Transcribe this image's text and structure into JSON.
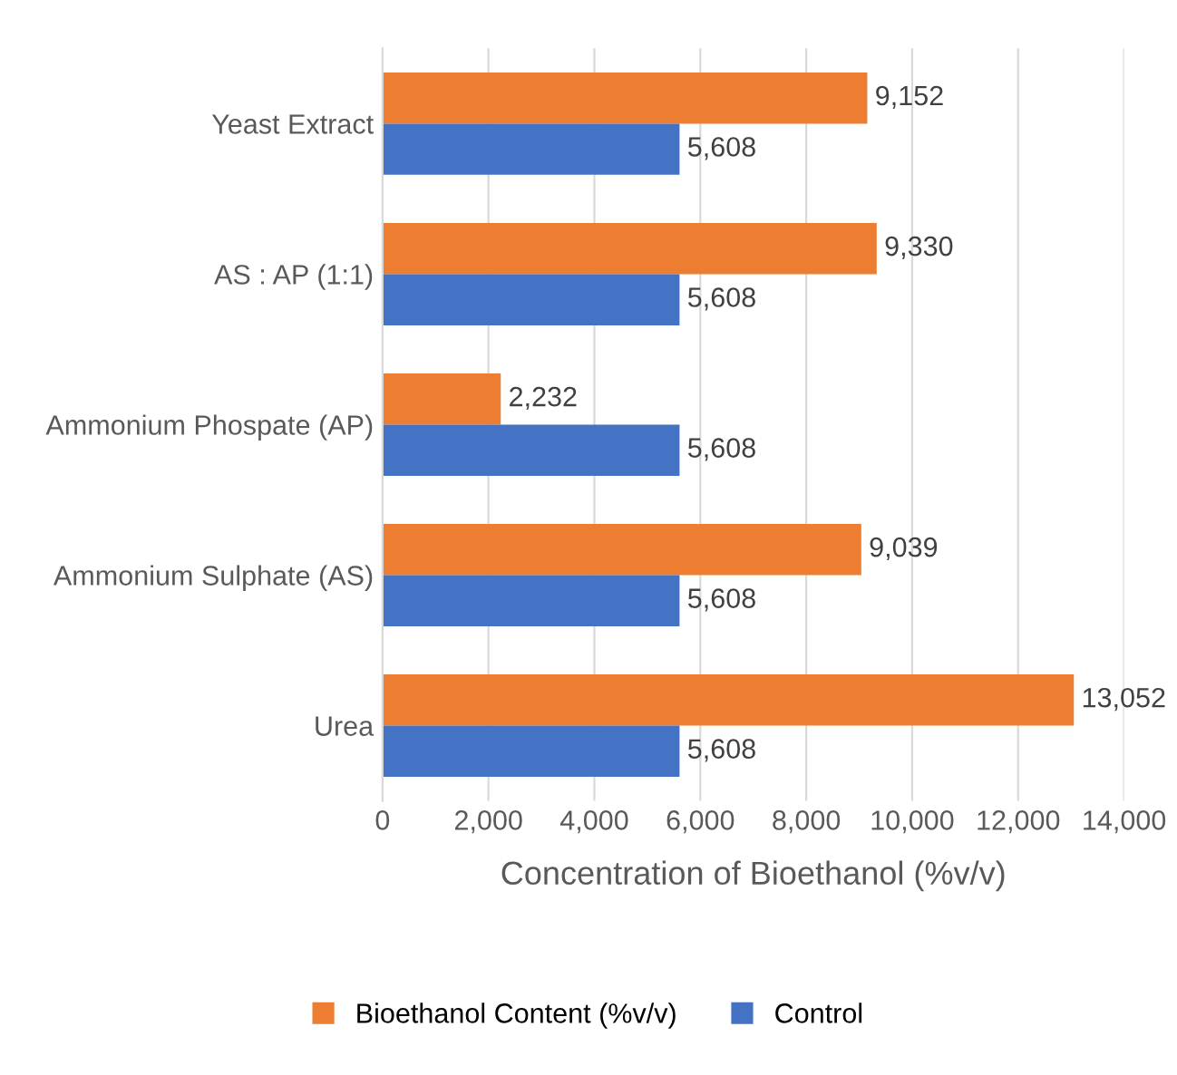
{
  "chart_data": {
    "type": "bar",
    "orientation": "horizontal",
    "xlabel": "Concentration of Bioethanol (%v/v)",
    "categories": [
      "Yeast Extract",
      "AS : AP (1:1)",
      "Ammonium Phospate (AP)",
      "Ammonium Sulphate (AS)",
      "Urea"
    ],
    "series": [
      {
        "name": "Bioethanol Content (%v/v)",
        "color": "#ed7d31",
        "values": [
          9152,
          9330,
          2232,
          9039,
          13052
        ],
        "value_labels": [
          "9,152",
          "9,330",
          "2,232",
          "9,039",
          "13,052"
        ]
      },
      {
        "name": "Control",
        "color": "#4472c4",
        "values": [
          5608,
          5608,
          5608,
          5608,
          5608
        ],
        "value_labels": [
          "5,608",
          "5,608",
          "5,608",
          "5,608",
          "5,608"
        ]
      }
    ],
    "xlim": [
      0,
      14000
    ],
    "xticks": [
      0,
      {
        "value": 2000,
        "label": "2,000"
      },
      {
        "value": 4000,
        "label": "4,000"
      },
      {
        "value": 6000,
        "label": "6,000"
      },
      {
        "value": 8000,
        "label": "8,000"
      },
      {
        "value": 10000,
        "label": "10,000"
      },
      {
        "value": 12000,
        "label": "12,000"
      },
      {
        "value": 14000,
        "label": "14,000"
      }
    ],
    "grid": "x",
    "legend": "bottom"
  }
}
